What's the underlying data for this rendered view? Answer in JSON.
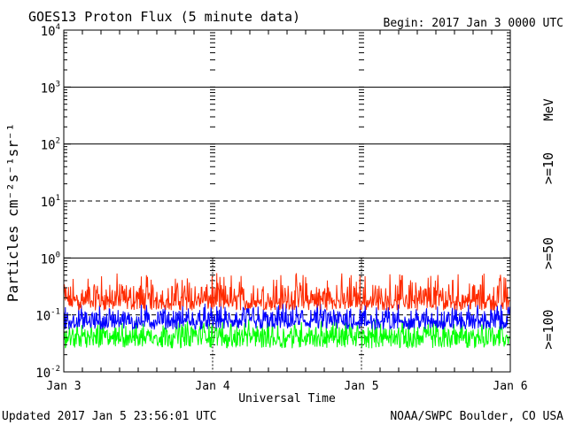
{
  "colors": {
    "background": "#ffffff",
    "axis": "#000000",
    "series_10": "#ff2a00",
    "series_50": "#0000ff",
    "series_100": "#00ff00"
  },
  "chart_data": {
    "type": "line",
    "title": "GOES13 Proton Flux (5 minute data)",
    "begin_label": "Begin: 2017 Jan 3 0000 UTC",
    "xlabel": "Universal Time",
    "ylabel": "Particles cm⁻²s⁻¹sr⁻¹",
    "y_scale": "log",
    "ylim": [
      0.01,
      10000
    ],
    "xlim": [
      "2017-01-03T00:00",
      "2017-01-06T00:00"
    ],
    "x_ticks": [
      "Jan 3",
      "Jan 4",
      "Jan 5",
      "Jan 6"
    ],
    "y_ticks": [
      {
        "base": "10",
        "exp": "4"
      },
      {
        "base": "10",
        "exp": "3"
      },
      {
        "base": "10",
        "exp": "2"
      },
      {
        "base": "10",
        "exp": "1"
      },
      {
        "base": "10",
        "exp": "0"
      },
      {
        "base": "10",
        "exp": "-1"
      },
      {
        "base": "10",
        "exp": "-2"
      }
    ],
    "reference_lines": [
      {
        "value": 1000,
        "style": "solid"
      },
      {
        "value": 100,
        "style": "solid"
      },
      {
        "value": 10,
        "style": "dashed"
      },
      {
        "value": 1,
        "style": "solid"
      },
      {
        "value": 0.1,
        "style": "dashed"
      }
    ],
    "legend_unit": "MeV",
    "series": [
      {
        "name": ">=10",
        "color": "#ff2a00",
        "typical": 0.17,
        "min": 0.12,
        "max": 0.55
      },
      {
        "name": ">=50",
        "color": "#0000ff",
        "typical": 0.075,
        "min": 0.055,
        "max": 0.16
      },
      {
        "name": ">=100",
        "color": "#00ff00",
        "typical": 0.04,
        "min": 0.026,
        "max": 0.085
      }
    ]
  },
  "footer": {
    "updated": "Updated 2017 Jan  5 23:56:01 UTC",
    "source": "NOAA/SWPC Boulder, CO USA"
  }
}
